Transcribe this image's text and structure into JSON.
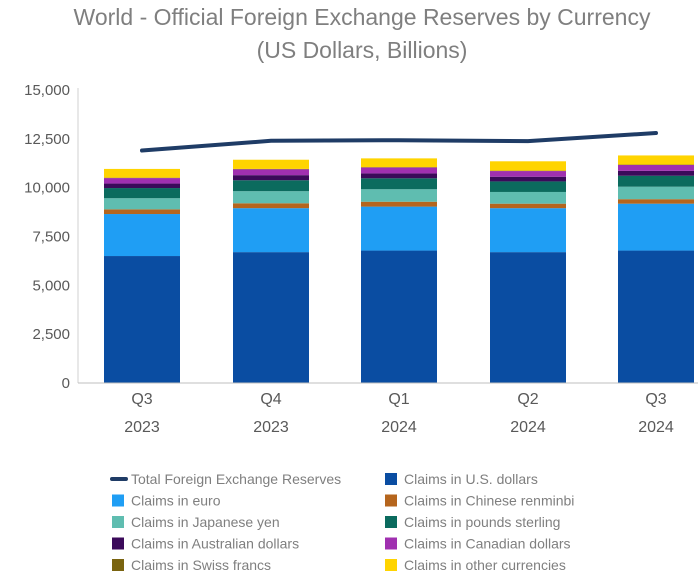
{
  "chart_data": {
    "type": "bar",
    "stacked": true,
    "title": "World - Official Foreign Exchange Reserves by Currency",
    "subtitle": "(US Dollars, Billions)",
    "categories": [
      [
        "Q3",
        "2023"
      ],
      [
        "Q4",
        "2023"
      ],
      [
        "Q1",
        "2024"
      ],
      [
        "Q2",
        "2024"
      ],
      [
        "Q3",
        "2024"
      ]
    ],
    "ylim": [
      0,
      15000
    ],
    "yticks": [
      "0",
      "2,500",
      "5,000",
      "7,500",
      "10,000",
      "12,500",
      "15,000"
    ],
    "ytick_values": [
      0,
      2500,
      5000,
      7500,
      10000,
      12500,
      15000
    ],
    "grid": false,
    "legend_position": "bottom",
    "series": [
      {
        "name": "Claims in U.S. dollars",
        "color": "#0a4da2",
        "values": [
          6500,
          6700,
          6780,
          6700,
          6780
        ]
      },
      {
        "name": "Claims in euro",
        "color": "#1f9ef4",
        "values": [
          2150,
          2250,
          2250,
          2250,
          2400
        ]
      },
      {
        "name": "Claims in Chinese renminbi",
        "color": "#b5651d",
        "values": [
          240,
          250,
          250,
          230,
          230
        ]
      },
      {
        "name": "Claims in Japanese yen",
        "color": "#5fbdb0",
        "values": [
          570,
          620,
          640,
          600,
          640
        ]
      },
      {
        "name": "Claims in pounds sterling",
        "color": "#0b6b5e",
        "values": [
          520,
          560,
          560,
          540,
          560
        ]
      },
      {
        "name": "Claims in Australian dollars",
        "color": "#3b0a5a",
        "values": [
          230,
          260,
          250,
          240,
          250
        ]
      },
      {
        "name": "Claims in Canadian dollars",
        "color": "#a030b0",
        "values": [
          280,
          300,
          300,
          290,
          300
        ]
      },
      {
        "name": "Claims in Swiss francs",
        "color": "#7a6410",
        "values": [
          20,
          20,
          20,
          20,
          20
        ]
      },
      {
        "name": "Claims in other currencies",
        "color": "#ffd400",
        "values": [
          450,
          470,
          450,
          480,
          470
        ]
      }
    ],
    "line_series": {
      "name": "Total Foreign Exchange Reserves",
      "color": "#1f3c66",
      "values": [
        11900,
        12400,
        12430,
        12380,
        12800
      ]
    }
  },
  "legend_order": [
    "Total Foreign Exchange Reserves",
    "Claims in U.S. dollars",
    "Claims in euro",
    "Claims in Chinese renminbi",
    "Claims in Japanese yen",
    "Claims in pounds sterling",
    "Claims in Australian dollars",
    "Claims in Canadian dollars",
    "Claims in Swiss francs",
    "Claims in other currencies"
  ]
}
